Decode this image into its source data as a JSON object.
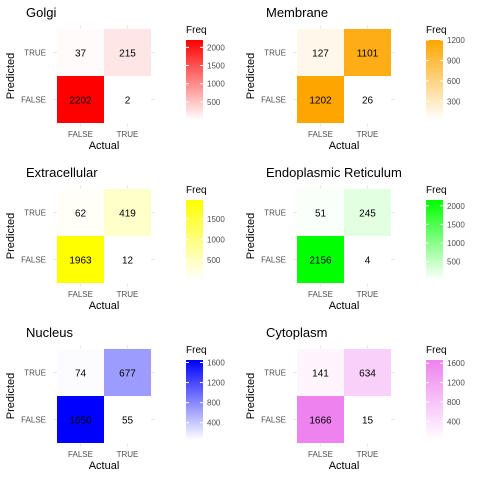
{
  "chart_data": [
    {
      "type": "heatmap",
      "title": "Golgi",
      "xlabel": "Actual",
      "ylabel": "Predicted",
      "x_categories": [
        "FALSE",
        "TRUE"
      ],
      "y_categories": [
        "FALSE",
        "TRUE"
      ],
      "cells": [
        {
          "actual": "FALSE",
          "predicted": "TRUE",
          "value": 37
        },
        {
          "actual": "TRUE",
          "predicted": "TRUE",
          "value": 215
        },
        {
          "actual": "FALSE",
          "predicted": "FALSE",
          "value": 2202
        },
        {
          "actual": "TRUE",
          "predicted": "FALSE",
          "value": 2
        }
      ],
      "legend_title": "Freq",
      "legend_ticks": [
        500,
        1000,
        1500,
        2000
      ],
      "legend_range": [
        2,
        2202
      ],
      "color_low": "#ffffff",
      "color_high": "#ff0000"
    },
    {
      "type": "heatmap",
      "title": "Membrane",
      "xlabel": "Actual",
      "ylabel": "Predicted",
      "x_categories": [
        "FALSE",
        "TRUE"
      ],
      "y_categories": [
        "FALSE",
        "TRUE"
      ],
      "cells": [
        {
          "actual": "FALSE",
          "predicted": "TRUE",
          "value": 127
        },
        {
          "actual": "TRUE",
          "predicted": "TRUE",
          "value": 1101
        },
        {
          "actual": "FALSE",
          "predicted": "FALSE",
          "value": 1202
        },
        {
          "actual": "TRUE",
          "predicted": "FALSE",
          "value": 26
        }
      ],
      "legend_title": "Freq",
      "legend_ticks": [
        300,
        600,
        900,
        1200
      ],
      "legend_range": [
        26,
        1202
      ],
      "color_low": "#ffffff",
      "color_high": "#ffa500"
    },
    {
      "type": "heatmap",
      "title": "Extracellular",
      "xlabel": "Actual",
      "ylabel": "Predicted",
      "x_categories": [
        "FALSE",
        "TRUE"
      ],
      "y_categories": [
        "FALSE",
        "TRUE"
      ],
      "cells": [
        {
          "actual": "FALSE",
          "predicted": "TRUE",
          "value": 62
        },
        {
          "actual": "TRUE",
          "predicted": "TRUE",
          "value": 419
        },
        {
          "actual": "FALSE",
          "predicted": "FALSE",
          "value": 1963
        },
        {
          "actual": "TRUE",
          "predicted": "FALSE",
          "value": 12
        }
      ],
      "legend_title": "Freq",
      "legend_ticks": [
        500,
        1000,
        1500
      ],
      "legend_range": [
        12,
        1963
      ],
      "color_low": "#ffffff",
      "color_high": "#ffff00"
    },
    {
      "type": "heatmap",
      "title": "Endoplasmic Reticulum",
      "xlabel": "Actual",
      "ylabel": "Predicted",
      "x_categories": [
        "FALSE",
        "TRUE"
      ],
      "y_categories": [
        "FALSE",
        "TRUE"
      ],
      "cells": [
        {
          "actual": "FALSE",
          "predicted": "TRUE",
          "value": 51
        },
        {
          "actual": "TRUE",
          "predicted": "TRUE",
          "value": 245
        },
        {
          "actual": "FALSE",
          "predicted": "FALSE",
          "value": 2156
        },
        {
          "actual": "TRUE",
          "predicted": "FALSE",
          "value": 4
        }
      ],
      "legend_title": "Freq",
      "legend_ticks": [
        500,
        1000,
        1500,
        2000
      ],
      "legend_range": [
        4,
        2156
      ],
      "color_low": "#ffffff",
      "color_high": "#00ff00"
    },
    {
      "type": "heatmap",
      "title": "Nucleus",
      "xlabel": "Actual",
      "ylabel": "Predicted",
      "x_categories": [
        "FALSE",
        "TRUE"
      ],
      "y_categories": [
        "FALSE",
        "TRUE"
      ],
      "cells": [
        {
          "actual": "FALSE",
          "predicted": "TRUE",
          "value": 74
        },
        {
          "actual": "TRUE",
          "predicted": "TRUE",
          "value": 677
        },
        {
          "actual": "FALSE",
          "predicted": "FALSE",
          "value": 1650
        },
        {
          "actual": "TRUE",
          "predicted": "FALSE",
          "value": 55
        }
      ],
      "legend_title": "Freq",
      "legend_ticks": [
        400,
        800,
        1200,
        1600
      ],
      "legend_range": [
        55,
        1650
      ],
      "color_low": "#ffffff",
      "color_high": "#0000ff"
    },
    {
      "type": "heatmap",
      "title": "Cytoplasm",
      "xlabel": "Actual",
      "ylabel": "Predicted",
      "x_categories": [
        "FALSE",
        "TRUE"
      ],
      "y_categories": [
        "FALSE",
        "TRUE"
      ],
      "cells": [
        {
          "actual": "FALSE",
          "predicted": "TRUE",
          "value": 141
        },
        {
          "actual": "TRUE",
          "predicted": "TRUE",
          "value": 634
        },
        {
          "actual": "FALSE",
          "predicted": "FALSE",
          "value": 1666
        },
        {
          "actual": "TRUE",
          "predicted": "FALSE",
          "value": 15
        }
      ],
      "legend_title": "Freq",
      "legend_ticks": [
        400,
        800,
        1200,
        1600
      ],
      "legend_range": [
        15,
        1666
      ],
      "color_low": "#ffffff",
      "color_high": "#ee82ee"
    }
  ]
}
